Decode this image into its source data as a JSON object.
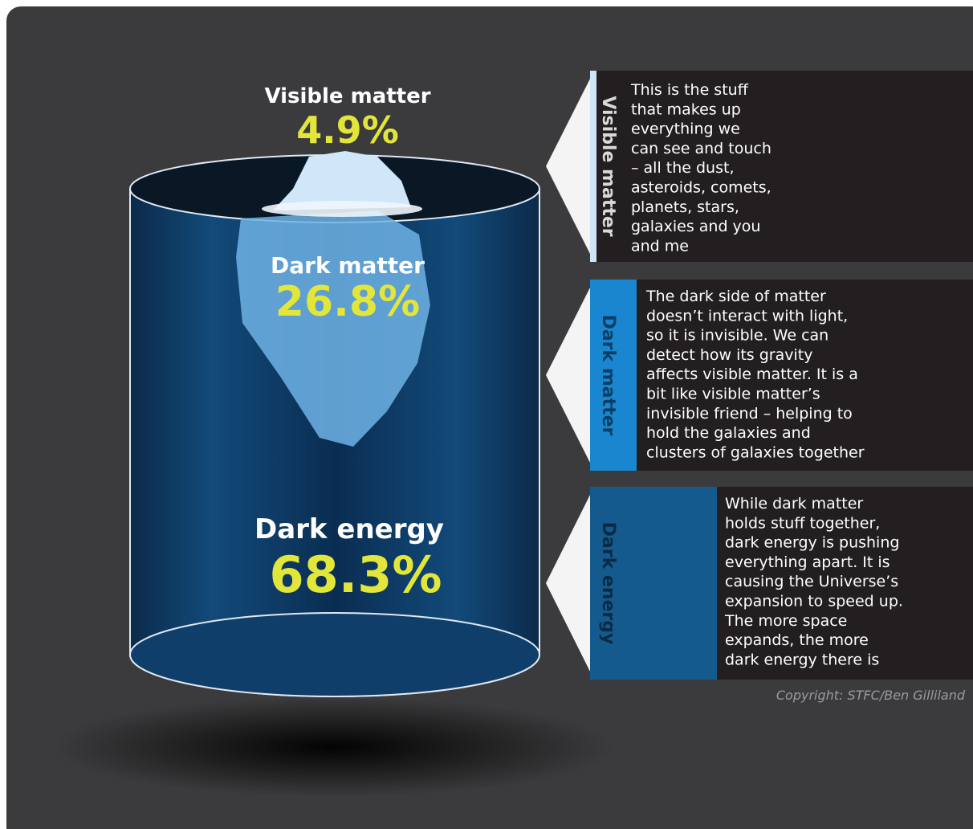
{
  "labels": [
    {
      "name": "Visible matter",
      "percent": "4.9%"
    },
    {
      "name": "Dark matter",
      "percent": "26.8%"
    },
    {
      "name": "Dark energy",
      "percent": "68.3%"
    }
  ],
  "panels": [
    {
      "title": "Visible matter",
      "lines": [
        "This is the stuff",
        "that makes up",
        "everything we",
        "can see and touch",
        "– all the dust,",
        "asteroids, comets,",
        "planets, stars,",
        "galaxies and you",
        "and me"
      ]
    },
    {
      "title": "Dark matter",
      "lines": [
        "The dark side of matter",
        "doesn’t interact with light,",
        "so it is invisible. We can",
        "detect how its gravity",
        "affects visible matter. It is a",
        "bit like visible matter’s",
        "invisible friend – helping to",
        "hold the galaxies and",
        "clusters of galaxies together"
      ]
    },
    {
      "title": "Dark energy",
      "lines": [
        "While dark matter",
        "holds stuff together,",
        "dark energy is pushing",
        "everything apart. It is",
        "causing the Universe’s",
        "expansion to speed up.",
        "The more space",
        "expands, the more",
        "dark energy there is"
      ]
    }
  ],
  "copyright": "Copyright: STFC/Ben Gilliland"
}
